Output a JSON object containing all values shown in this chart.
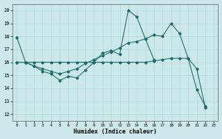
{
  "xlabel": "Humidex (Indice chaleur)",
  "xlim": [
    -0.5,
    23.5
  ],
  "ylim": [
    11.5,
    20.5
  ],
  "yticks": [
    12,
    13,
    14,
    15,
    16,
    17,
    18,
    19,
    20
  ],
  "xticks": [
    0,
    1,
    2,
    3,
    4,
    5,
    6,
    7,
    8,
    9,
    10,
    11,
    12,
    13,
    14,
    15,
    16,
    17,
    18,
    19,
    20,
    21,
    22,
    23
  ],
  "bg_color": "#cce8e8",
  "line_color": "#1a6b6b",
  "grid_color": "#b0d8d8",
  "line1_x": [
    0,
    1,
    2,
    3,
    4,
    5,
    6,
    7,
    8,
    9,
    10,
    11,
    12,
    13,
    14,
    15,
    16,
    17,
    18,
    19,
    20,
    21,
    22
  ],
  "line1_y": [
    17.9,
    16.0,
    15.7,
    15.3,
    15.1,
    14.6,
    14.9,
    14.8,
    15.4,
    16.0,
    16.7,
    16.9,
    16.6,
    20.0,
    19.5,
    17.8,
    18.1,
    18.0,
    19.0,
    18.2,
    16.3,
    13.9,
    12.6
  ],
  "line2_x": [
    0,
    1,
    2,
    3,
    4,
    5,
    6,
    7,
    8,
    9,
    10,
    11,
    12,
    13,
    14,
    15,
    16
  ],
  "line2_y": [
    16.0,
    16.0,
    15.7,
    15.5,
    15.3,
    15.1,
    15.3,
    15.5,
    15.9,
    16.2,
    16.5,
    16.8,
    17.1,
    17.5,
    17.6,
    17.8,
    16.2
  ],
  "line3_x": [
    0,
    1,
    2,
    3,
    4,
    5,
    6,
    7,
    8,
    9,
    10,
    11,
    12,
    13,
    14,
    15,
    16,
    17,
    18,
    19,
    20,
    21,
    22
  ],
  "line3_y": [
    16.0,
    16.0,
    16.0,
    16.0,
    16.0,
    16.0,
    16.0,
    16.0,
    16.0,
    16.0,
    16.0,
    16.0,
    16.0,
    16.0,
    16.0,
    16.0,
    16.1,
    16.2,
    16.3,
    16.3,
    16.3,
    15.5,
    12.5
  ]
}
